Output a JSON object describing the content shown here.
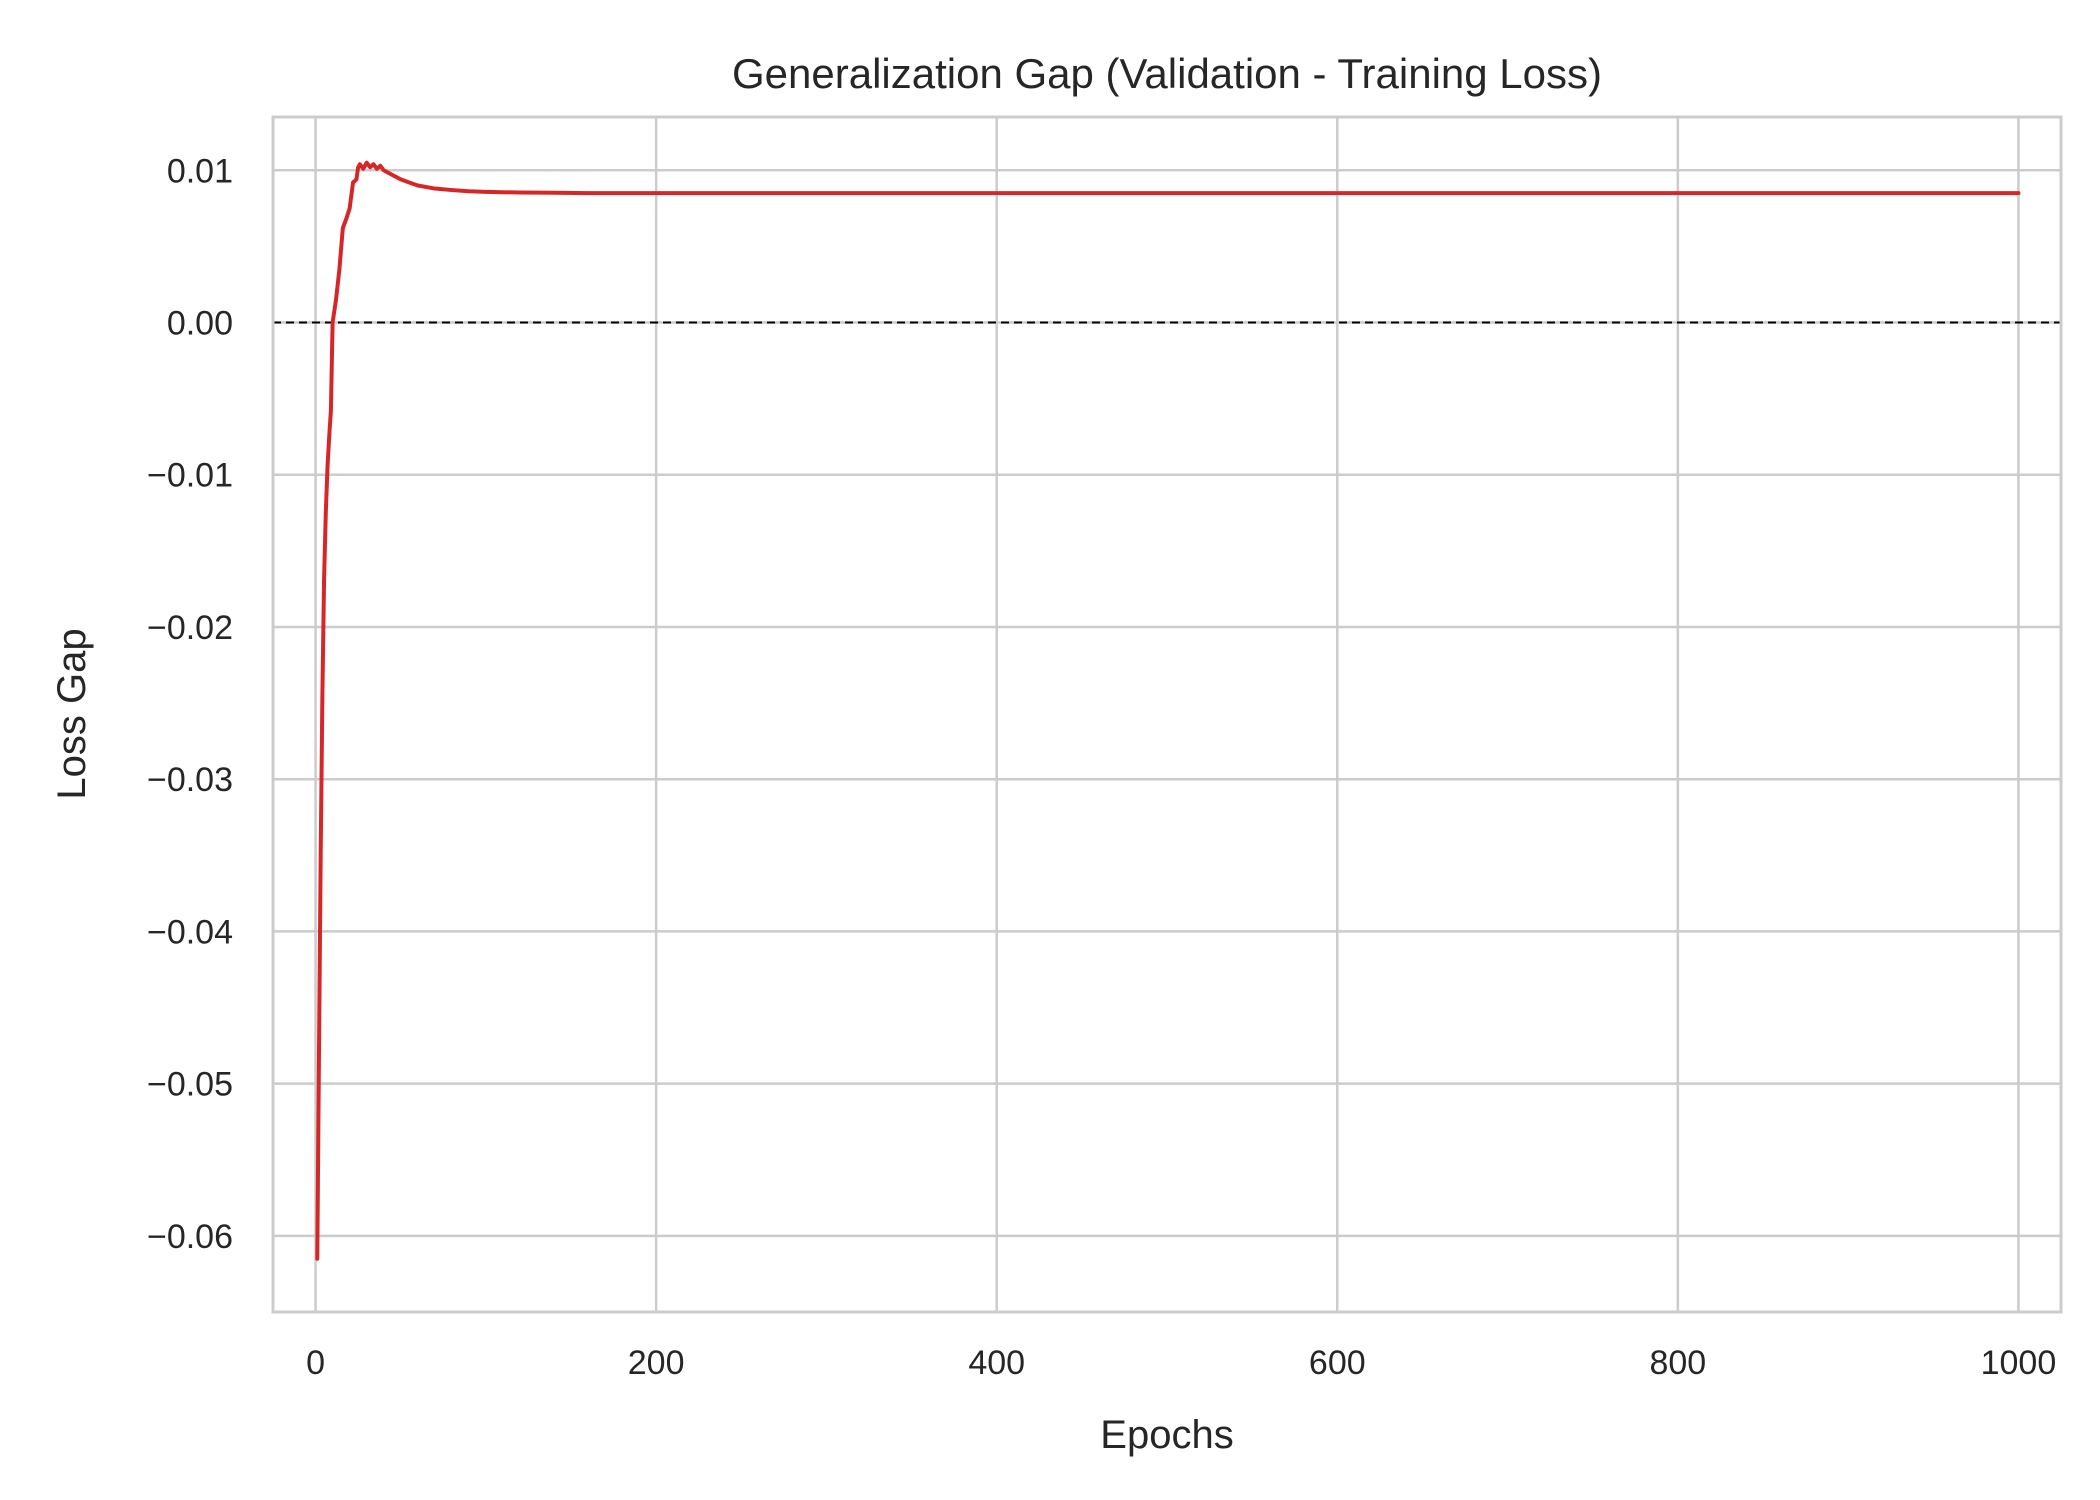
{
  "chart_data": {
    "type": "line",
    "title": "Generalization Gap (Validation - Training Loss)",
    "xlabel": "Epochs",
    "ylabel": "Loss Gap",
    "xlim": [
      -25,
      1025
    ],
    "ylim": [
      -0.065,
      0.0135
    ],
    "x_ticks": [
      0,
      200,
      400,
      600,
      800,
      1000
    ],
    "y_ticks": [
      -0.06,
      -0.05,
      -0.04,
      -0.03,
      -0.02,
      -0.01,
      0.0,
      0.01
    ],
    "x_tick_labels": [
      "0",
      "200",
      "400",
      "600",
      "800",
      "1000"
    ],
    "y_tick_labels": [
      "−0.06",
      "−0.05",
      "−0.04",
      "−0.03",
      "−0.02",
      "−0.01",
      "0.00",
      "0.01"
    ],
    "grid": true,
    "reference_line": {
      "y": 0.0,
      "style": "dashed",
      "color": "#000000"
    },
    "series": [
      {
        "color": "#d62728",
        "x": [
          1,
          2,
          3,
          4,
          5,
          6,
          7,
          8,
          9,
          10,
          12,
          14,
          16,
          18,
          20,
          22,
          24,
          25,
          26,
          28,
          30,
          32,
          34,
          36,
          38,
          40,
          45,
          50,
          55,
          60,
          70,
          80,
          90,
          100,
          120,
          140,
          160,
          200,
          300,
          400,
          500,
          600,
          700,
          800,
          900,
          1000
        ],
        "y": [
          -0.0615,
          -0.048,
          -0.035,
          -0.0245,
          -0.0168,
          -0.0125,
          -0.0095,
          -0.0075,
          -0.0058,
          0.0,
          0.0015,
          0.0035,
          0.0062,
          0.0068,
          0.0075,
          0.0092,
          0.0094,
          0.0102,
          0.0104,
          0.0101,
          0.0105,
          0.0102,
          0.0104,
          0.0101,
          0.0103,
          0.01,
          0.0097,
          0.0094,
          0.0092,
          0.009,
          0.0088,
          0.0087,
          0.00862,
          0.00858,
          0.00854,
          0.00852,
          0.0085,
          0.0085,
          0.0085,
          0.0085,
          0.0085,
          0.0085,
          0.0085,
          0.0085,
          0.0085,
          0.0085
        ]
      }
    ]
  }
}
